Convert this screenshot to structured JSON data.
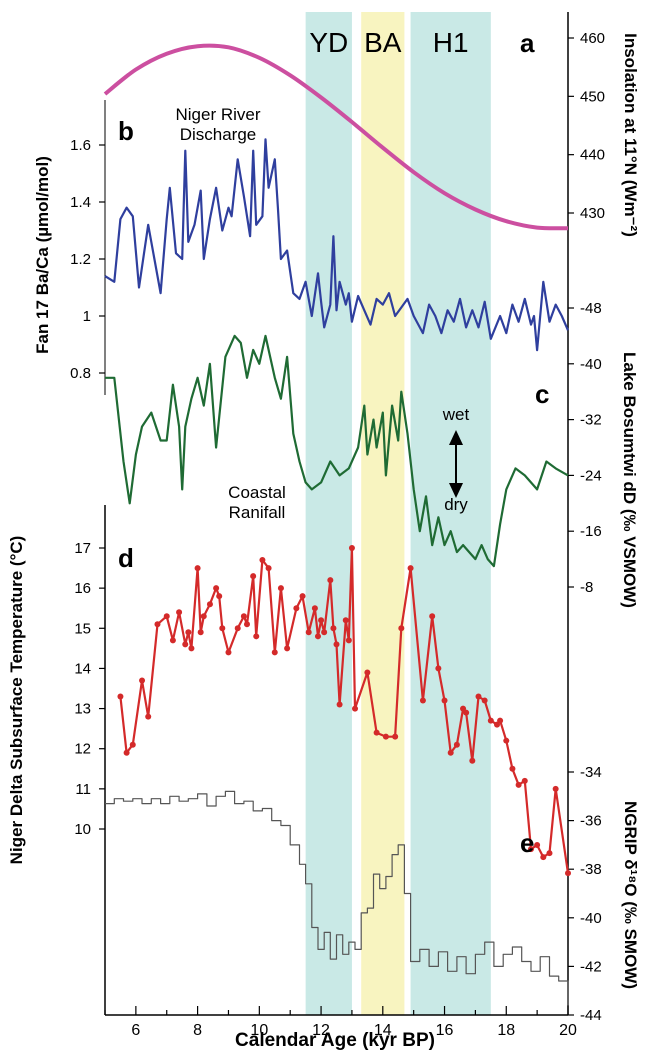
{
  "chart_data": {
    "type": "line",
    "xlabel": "Calendar Age (kyr BP)",
    "xlim": [
      5,
      20
    ],
    "x_ticks": [
      6,
      8,
      10,
      12,
      14,
      16,
      18,
      20
    ],
    "bands": [
      {
        "label": "YD",
        "start": 11.5,
        "end": 13.0,
        "color": "#c9e9e6"
      },
      {
        "label": "BA",
        "start": 13.3,
        "end": 14.7,
        "color": "#f8f4c0"
      },
      {
        "label": "H1",
        "start": 14.9,
        "end": 17.5,
        "color": "#c9e9e6"
      }
    ],
    "panels": [
      {
        "letter": "a",
        "ylabel": "Insolation at 11°N (Wm⁻²)",
        "axis_side": "right",
        "ticks": [
          460,
          450,
          440,
          430
        ],
        "color": "#cc4fa0",
        "style": "line",
        "x": [
          5,
          6,
          7,
          8,
          9,
          10,
          11,
          12,
          13,
          14,
          15,
          16,
          17,
          18,
          19,
          20
        ],
        "y": [
          450.4,
          454.6,
          457.3,
          458.6,
          458.4,
          456.6,
          453.6,
          449.8,
          445.6,
          441.2,
          437.0,
          433.4,
          430.6,
          428.6,
          427.5,
          427.4
        ]
      },
      {
        "letter": "b",
        "ylabel": "Fan 17 Ba/Ca (µmol/mol)",
        "axis_side": "left",
        "ticks": [
          1.6,
          1.4,
          1.2,
          1.0,
          0.8
        ],
        "tick_labels": [
          "1.6",
          "1.4",
          "1.2",
          "1",
          "0.8"
        ],
        "annotation": "Niger River Discharge",
        "color": "#2f3f9e",
        "style": "line",
        "x": [
          5.0,
          5.3,
          5.5,
          5.7,
          5.9,
          6.1,
          6.4,
          6.6,
          6.8,
          7.0,
          7.1,
          7.3,
          7.5,
          7.6,
          7.7,
          7.9,
          8.1,
          8.2,
          8.4,
          8.6,
          8.8,
          9.0,
          9.1,
          9.3,
          9.5,
          9.7,
          9.8,
          9.9,
          10.1,
          10.2,
          10.3,
          10.5,
          10.6,
          10.7,
          10.9,
          11.1,
          11.3,
          11.5,
          11.7,
          11.9,
          12.0,
          12.1,
          12.3,
          12.4,
          12.5,
          12.6,
          12.8,
          12.9,
          13.0,
          13.2,
          13.4,
          13.6,
          13.8,
          14.0,
          14.2,
          14.4,
          14.6,
          14.8,
          15.0,
          15.3,
          15.5,
          15.7,
          15.9,
          16.1,
          16.3,
          16.5,
          16.7,
          16.9,
          17.1,
          17.3,
          17.5,
          17.8,
          18.0,
          18.2,
          18.4,
          18.6,
          18.8,
          18.9,
          19.0,
          19.2,
          19.4,
          19.6,
          19.8,
          20.0
        ],
        "y": [
          1.14,
          1.12,
          1.34,
          1.38,
          1.35,
          1.1,
          1.32,
          1.2,
          1.08,
          1.34,
          1.45,
          1.22,
          1.2,
          1.58,
          1.26,
          1.32,
          1.44,
          1.2,
          1.34,
          1.45,
          1.3,
          1.38,
          1.35,
          1.55,
          1.42,
          1.28,
          1.58,
          1.32,
          1.35,
          1.62,
          1.45,
          1.55,
          1.38,
          1.2,
          1.23,
          1.08,
          1.06,
          1.12,
          1.0,
          1.15,
          1.05,
          0.96,
          1.04,
          1.28,
          1.02,
          1.12,
          1.04,
          1.08,
          0.98,
          1.07,
          1.02,
          0.97,
          1.06,
          1.04,
          1.08,
          1.0,
          1.03,
          1.06,
          1.0,
          0.94,
          1.04,
          1.0,
          0.94,
          1.02,
          0.98,
          1.06,
          0.96,
          1.02,
          0.96,
          1.05,
          0.92,
          1.0,
          0.94,
          1.04,
          0.98,
          1.06,
          0.97,
          1.0,
          0.88,
          1.12,
          0.98,
          1.04,
          1.0,
          0.95
        ]
      },
      {
        "letter": "c",
        "ylabel": "Lake Bosumtwi dD (‰ VSMOW)",
        "axis_side": "right",
        "ticks": [
          -48,
          -40,
          -32,
          -24,
          -16,
          -8
        ],
        "annotation": "Coastal Ranifall",
        "arrow_labels": [
          "wet",
          "dry"
        ],
        "color": "#1f6b34",
        "style": "line",
        "x": [
          5.0,
          5.3,
          5.6,
          5.8,
          6.0,
          6.2,
          6.5,
          6.8,
          7.0,
          7.2,
          7.4,
          7.5,
          7.6,
          7.8,
          8.0,
          8.2,
          8.4,
          8.6,
          8.9,
          9.2,
          9.4,
          9.6,
          9.8,
          10.0,
          10.2,
          10.5,
          10.7,
          10.9,
          11.1,
          11.3,
          11.5,
          11.7,
          12.0,
          12.3,
          12.6,
          12.9,
          13.2,
          13.4,
          13.5,
          13.7,
          13.8,
          14.0,
          14.1,
          14.3,
          14.5,
          14.6,
          14.8,
          15.0,
          15.2,
          15.4,
          15.6,
          15.8,
          16.0,
          16.2,
          16.4,
          16.6,
          16.8,
          17.0,
          17.2,
          17.4,
          17.6,
          17.8,
          18.0,
          18.3,
          18.6,
          19.0,
          19.3,
          19.6,
          20.0
        ],
        "y": [
          -38,
          -38,
          -26,
          -20,
          -27,
          -31,
          -33,
          -29,
          -29,
          -37,
          -31,
          -22,
          -31,
          -35,
          -38,
          -34,
          -40,
          -28,
          -41,
          -44,
          -43,
          -38,
          -42,
          -40,
          -44,
          -38,
          -35,
          -41,
          -30,
          -26,
          -23,
          -22,
          -23,
          -26,
          -24,
          -25,
          -28,
          -34,
          -27,
          -32,
          -28,
          -33,
          -24,
          -34,
          -29,
          -36,
          -30,
          -22,
          -16,
          -21,
          -14,
          -18,
          -14,
          -16,
          -13,
          -14,
          -13,
          -12,
          -14,
          -12,
          -11,
          -17,
          -22,
          -25,
          -24,
          -22,
          -26,
          -25,
          -24
        ]
      },
      {
        "letter": "d",
        "ylabel": "Niger Delta Subsurface Temperature (°C)",
        "axis_side": "left",
        "ticks": [
          17,
          16,
          15,
          14,
          13,
          12,
          11,
          10
        ],
        "color": "#d42a2a",
        "style": "line-markers",
        "x": [
          5.5,
          5.7,
          5.9,
          6.2,
          6.4,
          6.7,
          7.0,
          7.2,
          7.4,
          7.6,
          7.7,
          7.8,
          8.0,
          8.1,
          8.2,
          8.4,
          8.6,
          8.7,
          8.8,
          9.0,
          9.3,
          9.5,
          9.6,
          9.8,
          9.9,
          10.1,
          10.3,
          10.5,
          10.7,
          10.9,
          11.2,
          11.4,
          11.6,
          11.8,
          11.9,
          12.0,
          12.1,
          12.3,
          12.4,
          12.5,
          12.6,
          12.8,
          12.9,
          13.0,
          13.1,
          13.5,
          13.8,
          14.1,
          14.4,
          14.6,
          14.9,
          15.3,
          15.6,
          15.8,
          16.0,
          16.2,
          16.4,
          16.6,
          16.7,
          16.9,
          17.1,
          17.3,
          17.5,
          17.7,
          17.8,
          18.0,
          18.2,
          18.4,
          18.6,
          18.8,
          19.0,
          19.2,
          19.4,
          19.6,
          20.0
        ],
        "y": [
          13.3,
          11.9,
          12.1,
          13.7,
          12.8,
          15.1,
          15.3,
          14.7,
          15.4,
          14.6,
          14.9,
          14.5,
          16.5,
          14.9,
          15.3,
          15.6,
          16.0,
          15.8,
          15.0,
          14.4,
          15.0,
          15.3,
          15.1,
          16.3,
          14.8,
          16.7,
          16.5,
          14.4,
          16.0,
          14.5,
          15.5,
          15.8,
          14.9,
          15.5,
          14.8,
          15.2,
          14.9,
          16.2,
          15.0,
          14.6,
          13.1,
          15.2,
          14.7,
          17.0,
          13.0,
          13.9,
          12.4,
          12.3,
          12.3,
          15.0,
          16.5,
          13.2,
          15.3,
          14.0,
          13.2,
          11.9,
          12.1,
          13.0,
          12.9,
          11.7,
          13.3,
          13.2,
          12.7,
          12.6,
          12.7,
          12.2,
          11.5,
          11.1,
          11.2,
          9.5,
          9.6,
          9.3,
          9.4,
          11.0,
          8.9
        ]
      },
      {
        "letter": "e",
        "ylabel": "NGRIP δ¹⁸O (‰ SMOW)",
        "axis_side": "right",
        "ticks": [
          -34,
          -36,
          -38,
          -40,
          -42,
          -44
        ],
        "color": "#555555",
        "style": "step",
        "x": [
          5.0,
          5.3,
          5.6,
          5.9,
          6.2,
          6.5,
          6.8,
          7.1,
          7.4,
          7.7,
          8.0,
          8.3,
          8.6,
          8.9,
          9.2,
          9.5,
          9.8,
          10.1,
          10.4,
          10.7,
          11.0,
          11.3,
          11.5,
          11.7,
          11.9,
          12.1,
          12.3,
          12.5,
          12.7,
          12.9,
          13.1,
          13.3,
          13.5,
          13.7,
          13.9,
          14.1,
          14.3,
          14.5,
          14.7,
          14.9,
          15.2,
          15.5,
          15.8,
          16.1,
          16.4,
          16.7,
          17.0,
          17.3,
          17.6,
          17.9,
          18.2,
          18.5,
          18.8,
          19.1,
          19.4,
          19.7,
          20.0
        ],
        "y": [
          -35.3,
          -35.1,
          -35.2,
          -35.1,
          -35.3,
          -35.1,
          -35.3,
          -35.0,
          -35.2,
          -35.1,
          -34.9,
          -35.4,
          -35.0,
          -34.8,
          -35.3,
          -35.2,
          -35.6,
          -35.5,
          -36.0,
          -36.2,
          -37.0,
          -37.8,
          -38.6,
          -40.4,
          -41.3,
          -40.6,
          -41.7,
          -40.7,
          -41.5,
          -41.0,
          -41.3,
          -39.8,
          -39.6,
          -38.2,
          -38.8,
          -38.3,
          -37.4,
          -37.0,
          -39.0,
          -41.8,
          -41.3,
          -42.0,
          -41.4,
          -42.2,
          -41.6,
          -42.3,
          -41.5,
          -41.0,
          -42.0,
          -41.5,
          -41.2,
          -41.8,
          -42.2,
          -41.6,
          -42.4,
          -42.6,
          -43.6
        ]
      }
    ]
  }
}
